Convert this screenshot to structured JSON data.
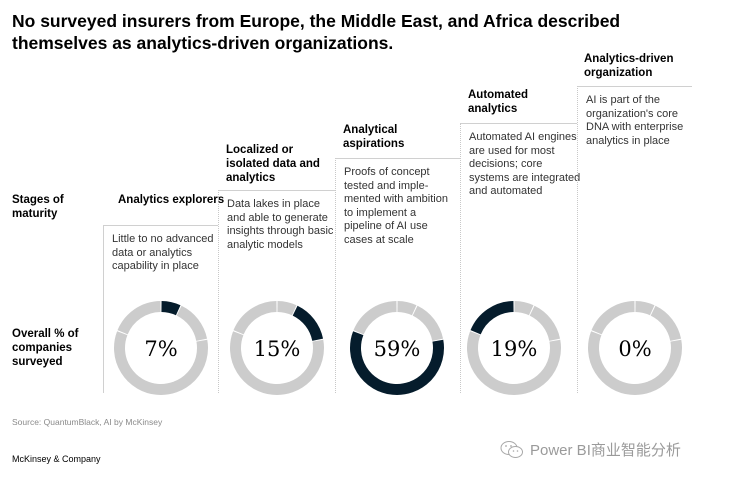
{
  "title": "No surveyed insurers from Europe, the Middle East, and Africa described themselves as analytics-driven organizations.",
  "row_labels": {
    "stages": "Stages of maturity",
    "overall": "Overall % of companies surveyed"
  },
  "colors": {
    "highlight": "#051c2c",
    "base": "#cccccc"
  },
  "chart_data": {
    "type": "pie",
    "title": "No surveyed insurers from Europe, the Middle East, and Africa described themselves as analytics-driven organizations.",
    "categories": [
      "Analytics explorers",
      "Localized or isolated data and analytics",
      "Analytical aspirations",
      "Automated analytics",
      "Analytics-driven organization"
    ],
    "values": [
      7,
      15,
      59,
      19,
      0
    ],
    "value_labels": [
      "7%",
      "15%",
      "59%",
      "19%",
      "0%"
    ],
    "unit": "%"
  },
  "stages": [
    {
      "title": "Analytics explorers",
      "desc": "Little to no advanced data or analytics capability in place",
      "pct_label": "7%"
    },
    {
      "title": "Localized or isolated data and analytics",
      "desc": "Data lakes in place and able to generate insights through basic analytic models",
      "pct_label": "15%"
    },
    {
      "title": "Analytical aspirations",
      "desc": "Proofs of concept tested and imple-mented with ambition to implement a pipeline of AI use cases at scale",
      "pct_label": "59%"
    },
    {
      "title": "Automated analytics",
      "desc": "Automated AI engines are used for most decisions; core systems are integrated and automated",
      "pct_label": "19%"
    },
    {
      "title": "Analytics-driven organization",
      "desc": "AI is part of the organization's core DNA with enterprise analytics in place",
      "pct_label": "0%"
    }
  ],
  "footer": {
    "source": "Source: QuantumBlack, AI by McKinsey",
    "brand": "McKinsey & Company",
    "watermark": "Power BI商业智能分析"
  }
}
